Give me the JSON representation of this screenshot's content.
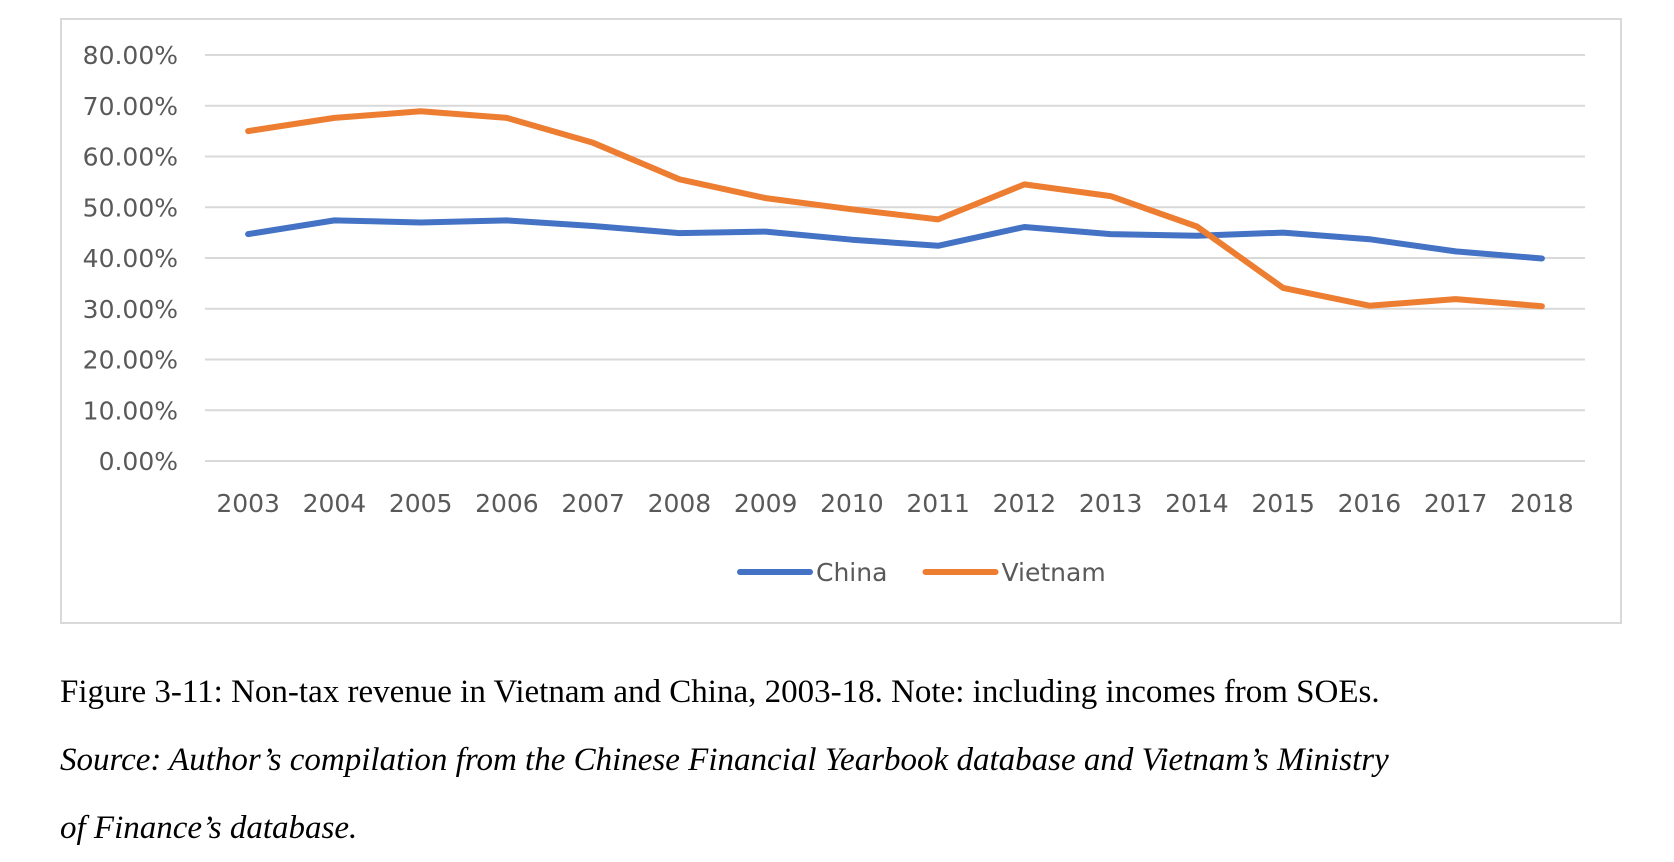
{
  "chart_data": {
    "type": "line",
    "categories": [
      "2003",
      "2004",
      "2005",
      "2006",
      "2007",
      "2008",
      "2009",
      "2010",
      "2011",
      "2012",
      "2013",
      "2014",
      "2015",
      "2016",
      "2017",
      "2018"
    ],
    "series": [
      {
        "name": "China",
        "color": "#4472c4",
        "values": [
          44.7,
          47.4,
          47.0,
          47.4,
          46.3,
          44.9,
          45.2,
          43.6,
          42.4,
          46.1,
          44.7,
          44.4,
          45.0,
          43.7,
          41.3,
          39.9
        ]
      },
      {
        "name": "Vietnam",
        "color": "#ed7d31",
        "values": [
          65.0,
          67.6,
          68.9,
          67.6,
          62.7,
          55.5,
          51.8,
          49.6,
          47.6,
          54.5,
          52.2,
          46.2,
          34.1,
          30.6,
          31.9,
          30.5
        ]
      }
    ],
    "y_ticks": [
      "0.00%",
      "10.00%",
      "20.00%",
      "30.00%",
      "40.00%",
      "50.00%",
      "60.00%",
      "70.00%",
      "80.00%"
    ],
    "ylim": [
      0,
      80
    ],
    "grid": true,
    "legend_position": "bottom",
    "gridline_color": "#d9d9d9"
  },
  "caption": {
    "line1": "Figure 3-11: Non-tax revenue in Vietnam and China, 2003-18. Note: including incomes from SOEs.",
    "line2": "Source: Author’s compilation from the Chinese Financial Yearbook database and Vietnam’s Ministry",
    "line3": "of Finance’s database."
  }
}
